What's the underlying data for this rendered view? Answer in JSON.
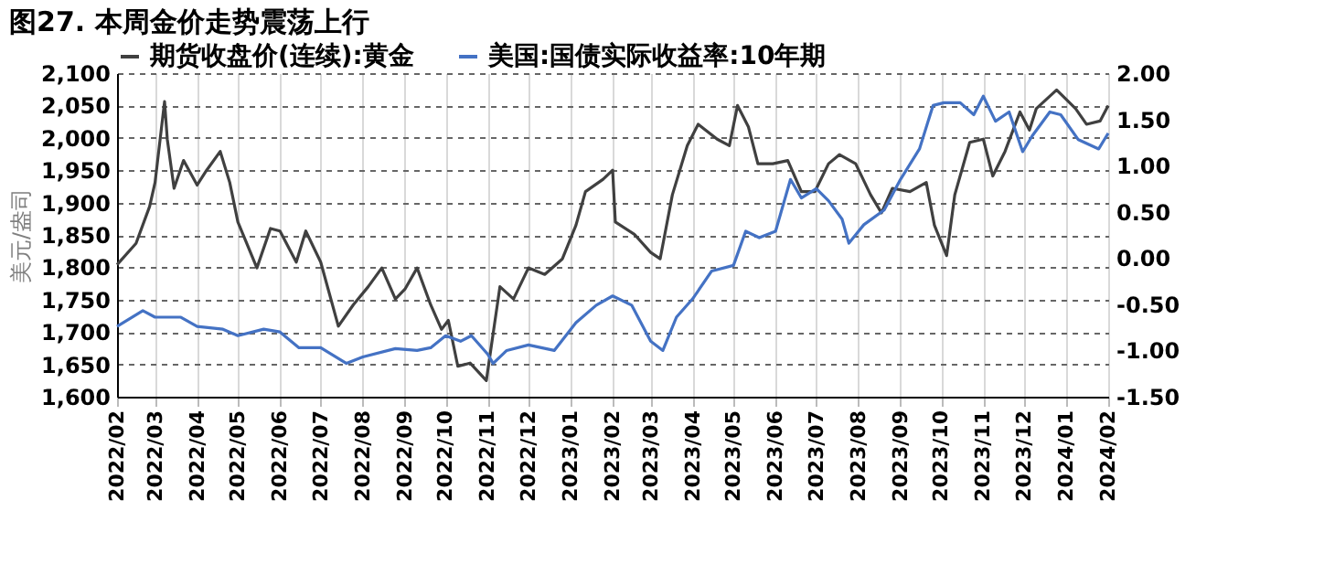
{
  "chart_data": {
    "type": "line",
    "title": "图27. 本周金价走势震荡上行",
    "ylabel": "美元/盎司",
    "xlim": [
      "2022-02-01",
      "2024-02-01"
    ],
    "xticks": [
      {
        "value": "2022-02-01",
        "label": "2022/02"
      },
      {
        "value": "2022-03-01",
        "label": "2022/03"
      },
      {
        "value": "2022-04-01",
        "label": "2022/04"
      },
      {
        "value": "2022-05-01",
        "label": "2022/05"
      },
      {
        "value": "2022-06-01",
        "label": "2022/06"
      },
      {
        "value": "2022-07-01",
        "label": "2022/07"
      },
      {
        "value": "2022-08-01",
        "label": "2022/08"
      },
      {
        "value": "2022-09-01",
        "label": "2022/09"
      },
      {
        "value": "2022-10-01",
        "label": "2022/10"
      },
      {
        "value": "2022-11-01",
        "label": "2022/11"
      },
      {
        "value": "2022-12-01",
        "label": "2022/12"
      },
      {
        "value": "2023-01-01",
        "label": "2023/01"
      },
      {
        "value": "2023-02-01",
        "label": "2023/02"
      },
      {
        "value": "2023-03-01",
        "label": "2023/03"
      },
      {
        "value": "2023-04-01",
        "label": "2023/04"
      },
      {
        "value": "2023-05-01",
        "label": "2023/05"
      },
      {
        "value": "2023-06-01",
        "label": "2023/06"
      },
      {
        "value": "2023-07-01",
        "label": "2023/07"
      },
      {
        "value": "2023-08-01",
        "label": "2023/08"
      },
      {
        "value": "2023-09-01",
        "label": "2023/09"
      },
      {
        "value": "2023-10-01",
        "label": "2023/10"
      },
      {
        "value": "2023-11-01",
        "label": "2023/11"
      },
      {
        "value": "2023-12-01",
        "label": "2023/12"
      },
      {
        "value": "2024-01-01",
        "label": "2024/01"
      },
      {
        "value": "2024-02-01",
        "label": "2024/02"
      }
    ],
    "ylim": [
      1600,
      2100
    ],
    "yticks": [
      {
        "value": 1600,
        "label": "1,600"
      },
      {
        "value": 1650,
        "label": "1,650"
      },
      {
        "value": 1700,
        "label": "1,700"
      },
      {
        "value": 1750,
        "label": "1,750"
      },
      {
        "value": 1800,
        "label": "1,800"
      },
      {
        "value": 1850,
        "label": "1,850"
      },
      {
        "value": 1900,
        "label": "1,900"
      },
      {
        "value": 1950,
        "label": "1,950"
      },
      {
        "value": 2000,
        "label": "2,000"
      },
      {
        "value": 2050,
        "label": "2,050"
      },
      {
        "value": 2100,
        "label": "2,100"
      }
    ],
    "y2lim": [
      -1.5,
      2.0
    ],
    "y2ticks": [
      {
        "value": -1.5,
        "label": "-1.50"
      },
      {
        "value": -1.0,
        "label": "-1.00"
      },
      {
        "value": -0.5,
        "label": "-0.50"
      },
      {
        "value": 0,
        "label": "0.00"
      },
      {
        "value": 0.5,
        "label": "0.50"
      },
      {
        "value": 1.0,
        "label": "1.00"
      },
      {
        "value": 1.5,
        "label": "1.50"
      },
      {
        "value": 2.0,
        "label": "2.00"
      }
    ],
    "grid": true,
    "legend": "top",
    "line_style": "solid",
    "series": [
      {
        "name": "期货收盘价(连续):黄金",
        "color": "#404040",
        "x": [
          "2022-02-01",
          "2022-02-15",
          "2022-02-25",
          "2022-03-01",
          "2022-03-08",
          "2022-03-10",
          "2022-03-15",
          "2022-03-22",
          "2022-04-01",
          "2022-04-08",
          "2022-04-18",
          "2022-04-25",
          "2022-05-01",
          "2022-05-15",
          "2022-05-25",
          "2022-06-01",
          "2022-06-13",
          "2022-06-20",
          "2022-07-01",
          "2022-07-14",
          "2022-07-25",
          "2022-08-05",
          "2022-08-15",
          "2022-08-25",
          "2022-09-01",
          "2022-09-10",
          "2022-09-20",
          "2022-09-28",
          "2022-10-03",
          "2022-10-10",
          "2022-10-19",
          "2022-10-31",
          "2022-11-10",
          "2022-11-20",
          "2022-12-01",
          "2022-12-13",
          "2022-12-26",
          "2023-01-05",
          "2023-01-12",
          "2023-01-25",
          "2023-02-01",
          "2023-02-03",
          "2023-02-17",
          "2023-03-01",
          "2023-03-08",
          "2023-03-17",
          "2023-03-28",
          "2023-04-05",
          "2023-04-19",
          "2023-04-28",
          "2023-05-04",
          "2023-05-12",
          "2023-05-19",
          "2023-05-30",
          "2023-06-10",
          "2023-06-20",
          "2023-06-30",
          "2023-07-10",
          "2023-07-18",
          "2023-07-30",
          "2023-08-10",
          "2023-08-18",
          "2023-08-26",
          "2023-09-08",
          "2023-09-20",
          "2023-09-26",
          "2023-10-05",
          "2023-10-11",
          "2023-10-22",
          "2023-11-01",
          "2023-11-08",
          "2023-11-17",
          "2023-11-28",
          "2023-12-05",
          "2023-12-10",
          "2023-12-25",
          "2024-01-08",
          "2024-01-16",
          "2024-01-26",
          "2024-02-01"
        ],
        "values": [
          1804,
          1837,
          1894,
          1931,
          2056,
          1998,
          1922,
          1965,
          1927,
          1950,
          1979,
          1931,
          1870,
          1799,
          1860,
          1856,
          1808,
          1856,
          1808,
          1709,
          1742,
          1770,
          1799,
          1751,
          1766,
          1799,
          1742,
          1704,
          1718,
          1647,
          1652,
          1625,
          1770,
          1751,
          1799,
          1789,
          1813,
          1865,
          1917,
          1936,
          1950,
          1870,
          1851,
          1823,
          1813,
          1912,
          1988,
          2021,
          1998,
          1988,
          2050,
          2017,
          1960,
          1960,
          1965,
          1917,
          1917,
          1960,
          1974,
          1960,
          1912,
          1884,
          1922,
          1917,
          1931,
          1865,
          1818,
          1912,
          1993,
          1998,
          1941,
          1979,
          2040,
          2012,
          2045,
          2074,
          2045,
          2021,
          2026,
          2050
        ]
      },
      {
        "name": "美国:国债实际收益率:10年期",
        "color": "#4472c4",
        "axis": "y2",
        "x": [
          "2022-02-01",
          "2022-02-20",
          "2022-03-01",
          "2022-03-20",
          "2022-04-01",
          "2022-04-20",
          "2022-05-01",
          "2022-05-20",
          "2022-06-01",
          "2022-06-15",
          "2022-07-01",
          "2022-07-20",
          "2022-08-01",
          "2022-08-25",
          "2022-09-10",
          "2022-09-20",
          "2022-10-01",
          "2022-10-12",
          "2022-10-20",
          "2022-11-01",
          "2022-11-05",
          "2022-11-15",
          "2022-12-01",
          "2022-12-20",
          "2023-01-05",
          "2023-01-20",
          "2023-02-01",
          "2023-02-15",
          "2023-03-01",
          "2023-03-10",
          "2023-03-20",
          "2023-04-01",
          "2023-04-15",
          "2023-05-01",
          "2023-05-10",
          "2023-05-20",
          "2023-06-01",
          "2023-06-12",
          "2023-06-20",
          "2023-07-01",
          "2023-07-10",
          "2023-07-20",
          "2023-07-25",
          "2023-08-05",
          "2023-08-20",
          "2023-09-01",
          "2023-09-15",
          "2023-09-25",
          "2023-10-03",
          "2023-10-15",
          "2023-10-25",
          "2023-11-01",
          "2023-11-10",
          "2023-11-20",
          "2023-11-30",
          "2023-12-07",
          "2023-12-20",
          "2023-12-28",
          "2024-01-10",
          "2024-01-25",
          "2024-02-01"
        ],
        "values": [
          -0.74,
          -0.57,
          -0.64,
          -0.64,
          -0.74,
          -0.77,
          -0.84,
          -0.77,
          -0.8,
          -0.97,
          -0.97,
          -1.14,
          -1.07,
          -0.98,
          -1.0,
          -0.97,
          -0.84,
          -0.9,
          -0.84,
          -1.04,
          -1.14,
          -1.0,
          -0.94,
          -1.0,
          -0.7,
          -0.51,
          -0.41,
          -0.51,
          -0.9,
          -1.0,
          -0.64,
          -0.44,
          -0.14,
          -0.08,
          0.29,
          0.22,
          0.29,
          0.85,
          0.65,
          0.75,
          0.62,
          0.42,
          0.16,
          0.36,
          0.52,
          0.85,
          1.18,
          1.65,
          1.68,
          1.68,
          1.55,
          1.75,
          1.48,
          1.58,
          1.15,
          1.32,
          1.58,
          1.55,
          1.28,
          1.18,
          1.35
        ]
      }
    ]
  }
}
